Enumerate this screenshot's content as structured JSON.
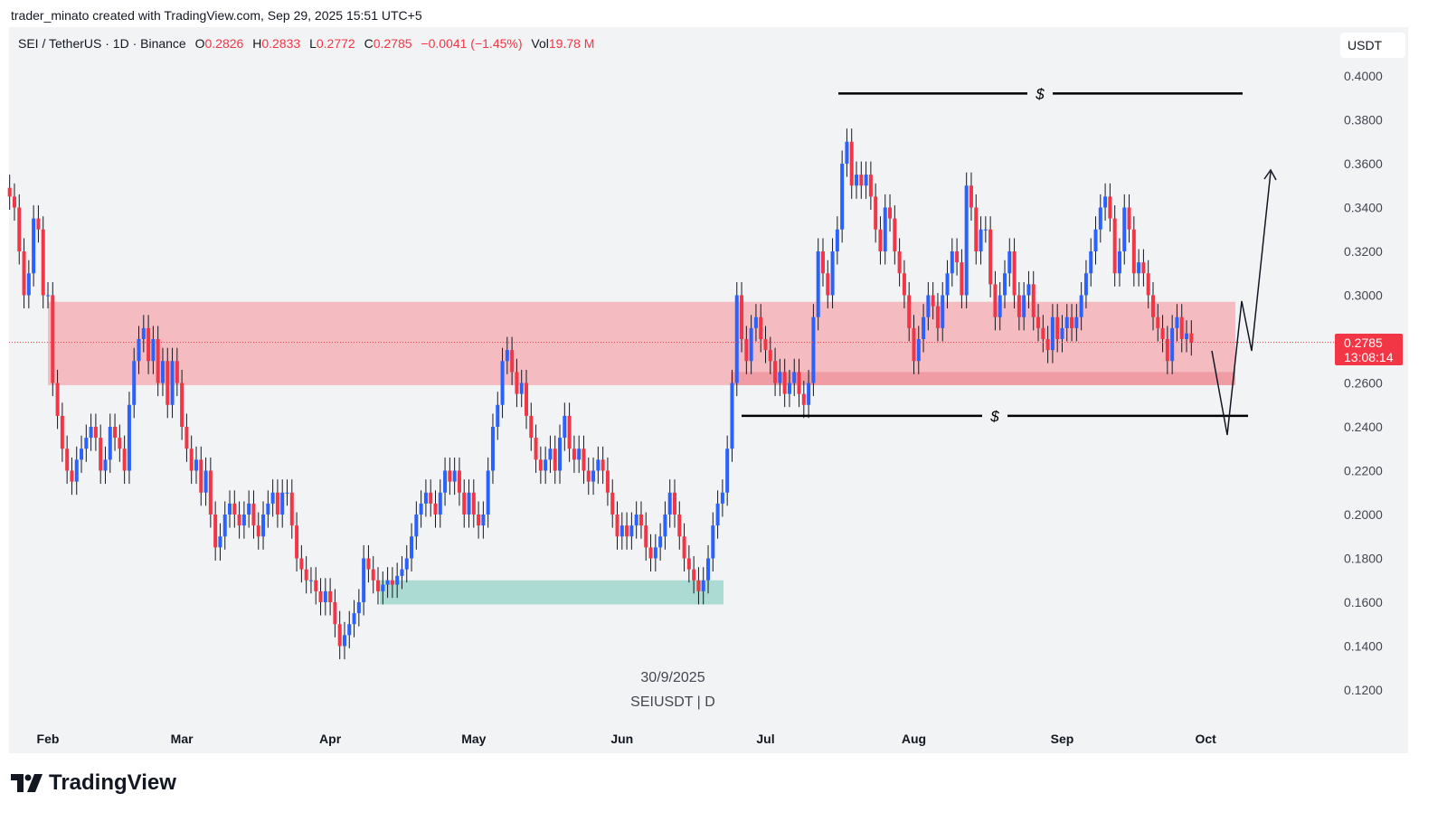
{
  "header": {
    "credit": "trader_minato created with TradingView.com, Sep 29, 2025 15:51 UTC+5"
  },
  "legend": {
    "symbol": "SEI / TetherUS · 1D · Binance",
    "open_label": "O",
    "open": "0.2826",
    "high_label": "H",
    "high": "0.2833",
    "low_label": "L",
    "low": "0.2772",
    "close_label": "C",
    "close": "0.2785",
    "change": "−0.0041 (−1.45%)",
    "vol_label": "Vol",
    "vol": "19.78 M"
  },
  "price_axis": {
    "unit": "USDT",
    "last_price": "0.2785",
    "countdown": "13:08:14"
  },
  "watermark": {
    "date": "30/9/2025",
    "symbol": "SEIUSDT | D"
  },
  "footer": {
    "brand": "TradingView"
  },
  "colors": {
    "up": "#2962ff",
    "down": "#f23645",
    "supply_zone": "#f4b6bb",
    "demand_zone": "#a3d8cf",
    "background": "#f2f3f5"
  },
  "chart_data": {
    "type": "candlestick",
    "xlabel": "",
    "ylabel": "",
    "ylim": [
      0.11,
      0.41
    ],
    "y_ticks": [
      "0.4000",
      "0.3800",
      "0.3600",
      "0.3400",
      "0.3200",
      "0.3000",
      "0.2600",
      "0.2400",
      "0.2200",
      "0.2000",
      "0.1800",
      "0.1600",
      "0.1400",
      "0.1200"
    ],
    "x_ticks": [
      "Feb",
      "Mar",
      "Apr",
      "May",
      "Jun",
      "Jul",
      "Aug",
      "Sep",
      "Oct"
    ],
    "grid": false,
    "closes": [
      0.345,
      0.34,
      0.32,
      0.3,
      0.31,
      0.335,
      0.33,
      0.3,
      0.3,
      0.26,
      0.245,
      0.23,
      0.22,
      0.215,
      0.225,
      0.23,
      0.235,
      0.24,
      0.235,
      0.22,
      0.225,
      0.24,
      0.235,
      0.23,
      0.22,
      0.25,
      0.27,
      0.28,
      0.285,
      0.27,
      0.28,
      0.26,
      0.27,
      0.25,
      0.27,
      0.26,
      0.24,
      0.23,
      0.22,
      0.225,
      0.21,
      0.22,
      0.2,
      0.185,
      0.19,
      0.2,
      0.205,
      0.2,
      0.195,
      0.2,
      0.205,
      0.195,
      0.19,
      0.2,
      0.205,
      0.21,
      0.2,
      0.21,
      0.21,
      0.195,
      0.18,
      0.175,
      0.17,
      0.17,
      0.165,
      0.16,
      0.165,
      0.16,
      0.15,
      0.14,
      0.145,
      0.15,
      0.155,
      0.16,
      0.18,
      0.175,
      0.17,
      0.165,
      0.168,
      0.17,
      0.168,
      0.172,
      0.175,
      0.18,
      0.19,
      0.2,
      0.205,
      0.21,
      0.205,
      0.2,
      0.21,
      0.22,
      0.215,
      0.22,
      0.21,
      0.2,
      0.21,
      0.2,
      0.195,
      0.2,
      0.22,
      0.24,
      0.25,
      0.27,
      0.275,
      0.265,
      0.255,
      0.26,
      0.245,
      0.235,
      0.225,
      0.22,
      0.225,
      0.23,
      0.22,
      0.235,
      0.245,
      0.23,
      0.225,
      0.23,
      0.22,
      0.215,
      0.22,
      0.225,
      0.22,
      0.21,
      0.2,
      0.19,
      0.195,
      0.19,
      0.195,
      0.2,
      0.195,
      0.185,
      0.18,
      0.185,
      0.19,
      0.2,
      0.21,
      0.2,
      0.19,
      0.18,
      0.175,
      0.17,
      0.165,
      0.17,
      0.18,
      0.195,
      0.205,
      0.21,
      0.23,
      0.26,
      0.3,
      0.28,
      0.27,
      0.285,
      0.29,
      0.28,
      0.275,
      0.27,
      0.26,
      0.265,
      0.255,
      0.26,
      0.265,
      0.255,
      0.25,
      0.26,
      0.29,
      0.32,
      0.31,
      0.3,
      0.32,
      0.33,
      0.36,
      0.37,
      0.35,
      0.355,
      0.35,
      0.355,
      0.345,
      0.33,
      0.32,
      0.34,
      0.335,
      0.32,
      0.31,
      0.3,
      0.285,
      0.27,
      0.28,
      0.29,
      0.3,
      0.295,
      0.285,
      0.3,
      0.31,
      0.32,
      0.315,
      0.3,
      0.35,
      0.34,
      0.32,
      0.33,
      0.33,
      0.305,
      0.29,
      0.3,
      0.31,
      0.32,
      0.3,
      0.29,
      0.3,
      0.305,
      0.29,
      0.285,
      0.28,
      0.275,
      0.29,
      0.28,
      0.285,
      0.29,
      0.285,
      0.29,
      0.3,
      0.31,
      0.32,
      0.33,
      0.34,
      0.345,
      0.335,
      0.31,
      0.32,
      0.34,
      0.33,
      0.31,
      0.315,
      0.31,
      0.3,
      0.29,
      0.285,
      0.28,
      0.27,
      0.285,
      0.29,
      0.28,
      0.2826,
      0.2785
    ],
    "zones": [
      {
        "name": "supply-zone",
        "top": 0.297,
        "bottom": 0.259
      },
      {
        "name": "inner-supply-zone",
        "top": 0.265,
        "bottom": 0.259
      },
      {
        "name": "demand-zone",
        "top": 0.17,
        "bottom": 0.159
      }
    ],
    "liquidity_lines": [
      {
        "label": "$",
        "price": 0.392
      },
      {
        "label": "$",
        "price": 0.245
      }
    ]
  }
}
